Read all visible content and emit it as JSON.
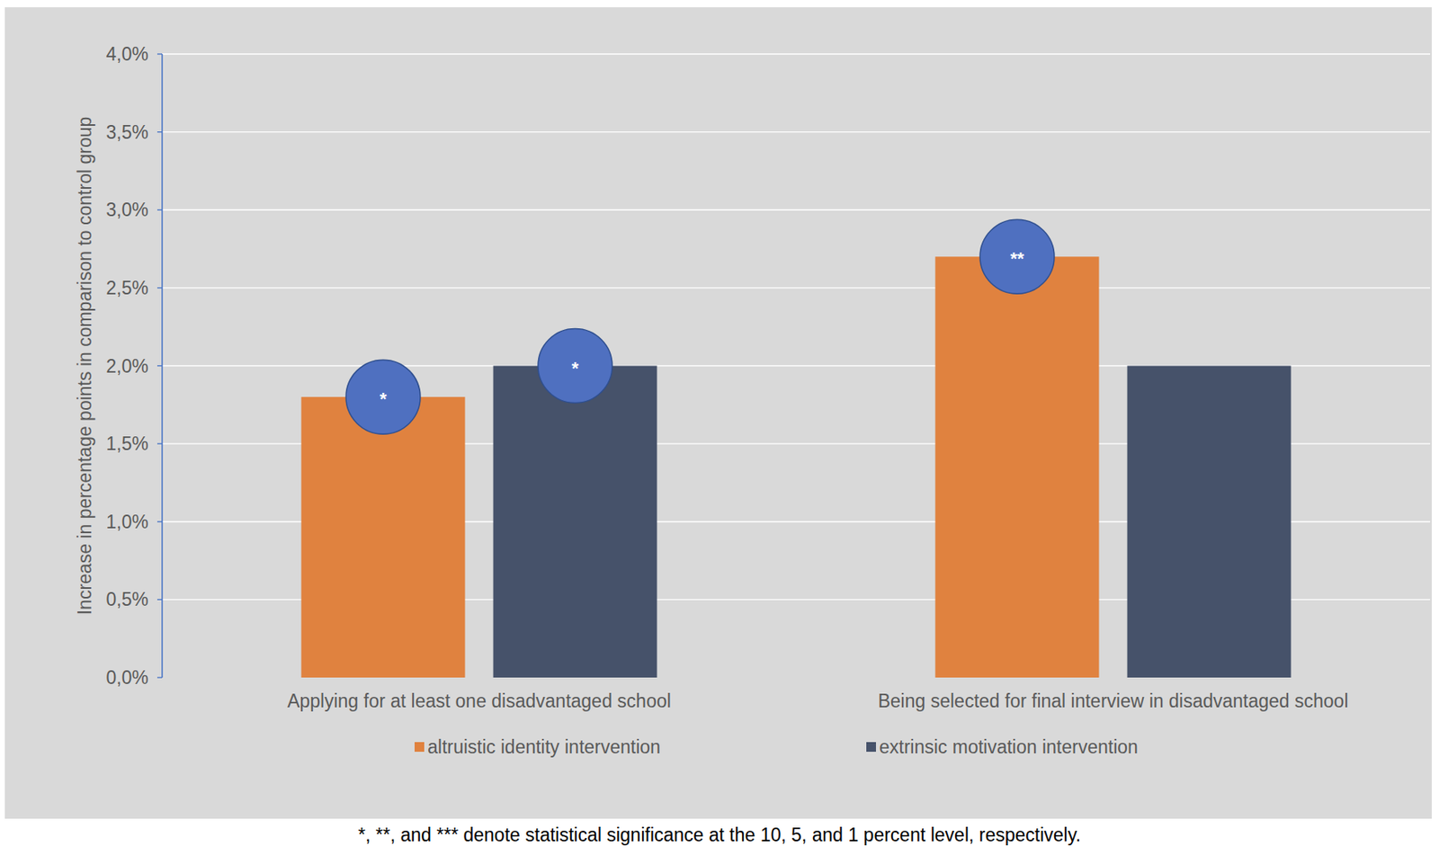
{
  "chart_data": {
    "type": "bar",
    "y_label": "Increase in percentage points in comparison to control group",
    "categories": [
      "Applying for at least one disadvantaged school",
      "Being selected for final interview in disadvantaged school"
    ],
    "series": [
      {
        "name": "altruistic identity intervention",
        "color": "#e0823f",
        "values": [
          1.8,
          2.7
        ],
        "significance": [
          "*",
          "**"
        ]
      },
      {
        "name": "extrinsic motivation intervention",
        "color": "#46526a",
        "values": [
          2.0,
          2.0
        ],
        "significance": [
          "*",
          null
        ]
      }
    ],
    "ylim": [
      0,
      4
    ],
    "yticks": [
      {
        "value": 0,
        "label": "0,0%"
      },
      {
        "value": 0.5,
        "label": "0,5%"
      },
      {
        "value": 1,
        "label": "1,0%"
      },
      {
        "value": 1.5,
        "label": "1,5%"
      },
      {
        "value": 2,
        "label": "2,0%"
      },
      {
        "value": 2.5,
        "label": "2,5%"
      },
      {
        "value": 3,
        "label": "3,0%"
      },
      {
        "value": 3.5,
        "label": "3,5%"
      },
      {
        "value": 4,
        "label": "4,0%"
      }
    ],
    "grid": true,
    "legend": "bottom",
    "footnote": "*, **, and *** denote statistical significance at the 10, 5, and 1 percent level, respectively."
  }
}
